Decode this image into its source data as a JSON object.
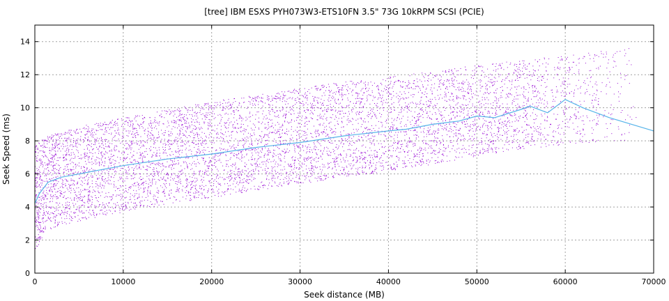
{
  "chart_data": {
    "type": "scatter",
    "title": "[tree] IBM ESXS PYH073W3-ETS10FN 3.5\" 73G 10kRPM SCSI (PCIE)",
    "xlabel": "Seek distance (MB)",
    "ylabel": "Seek Speed (ms)",
    "xlim": [
      0,
      70000
    ],
    "ylim": [
      0,
      15
    ],
    "x_ticks": [
      0,
      10000,
      20000,
      30000,
      40000,
      50000,
      60000,
      70000
    ],
    "y_ticks": [
      0,
      2,
      4,
      6,
      8,
      10,
      12,
      14
    ],
    "grid": true,
    "colors": {
      "points": "#9400d3",
      "trend": "#56b4e9"
    },
    "series": [
      {
        "type": "scatter-band",
        "description_of_samples": "dense cloud of individual seek samples",
        "envelope": {
          "x": [
            0,
            1000,
            3000,
            6000,
            10000,
            15000,
            20000,
            25000,
            30000,
            35000,
            40000,
            45000,
            50000,
            55000,
            60000,
            65000,
            68000
          ],
          "lower": [
            1.3,
            2.4,
            2.9,
            3.3,
            3.7,
            4.2,
            4.6,
            5.0,
            5.4,
            5.8,
            6.2,
            6.6,
            7.1,
            7.5,
            7.8,
            8.0,
            8.1
          ],
          "upper": [
            7.8,
            8.2,
            8.6,
            9.0,
            9.4,
            9.9,
            10.4,
            10.8,
            11.2,
            11.6,
            11.9,
            12.2,
            12.6,
            12.9,
            13.2,
            13.5,
            13.7
          ]
        },
        "sparse_after_x": 52000
      },
      {
        "type": "line",
        "x": [
          0,
          500,
          1500,
          3000,
          6000,
          10000,
          15000,
          20000,
          25000,
          30000,
          35000,
          40000,
          42000,
          45000,
          48000,
          50000,
          52000,
          55000,
          56000,
          58000,
          60000,
          62000,
          65000,
          70000
        ],
        "y": [
          4.2,
          4.8,
          5.5,
          5.8,
          6.1,
          6.5,
          6.9,
          7.2,
          7.6,
          7.9,
          8.3,
          8.6,
          8.7,
          9.0,
          9.2,
          9.5,
          9.4,
          9.9,
          10.1,
          9.7,
          10.5,
          10.0,
          9.4,
          8.6
        ]
      }
    ]
  }
}
